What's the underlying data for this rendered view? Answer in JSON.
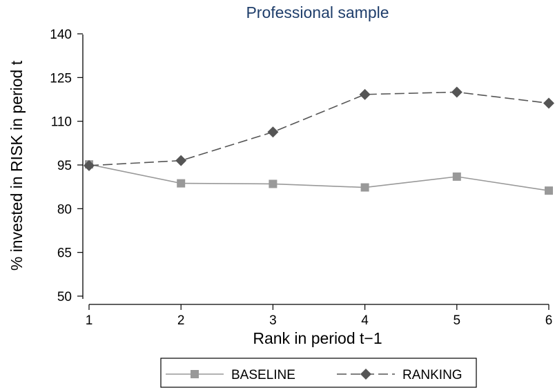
{
  "chart_data": {
    "type": "line",
    "title": "Professional sample",
    "xlabel": "Rank in period t−1",
    "ylabel": "% invested in RISK in period t",
    "x": [
      1,
      2,
      3,
      4,
      5,
      6
    ],
    "xlim": [
      1,
      6
    ],
    "ylim": [
      50,
      140
    ],
    "yticks": [
      "50",
      "65",
      "80",
      "95",
      "110",
      "125",
      "140"
    ],
    "xticks": [
      "1",
      "2",
      "3",
      "4",
      "5",
      "6"
    ],
    "grid": false,
    "legend_position": "bottom",
    "series": [
      {
        "name": "BASELINE",
        "values": [
          95.2,
          88.7,
          88.5,
          87.3,
          91.0,
          86.2
        ],
        "color": "#999999",
        "dash": "solid",
        "marker": "square"
      },
      {
        "name": "RANKING",
        "values": [
          94.8,
          96.5,
          106.3,
          119.2,
          120.0,
          116.2
        ],
        "color": "#555555",
        "dash": "dashed",
        "marker": "diamond"
      }
    ],
    "title_color": "#1f3e6b"
  }
}
